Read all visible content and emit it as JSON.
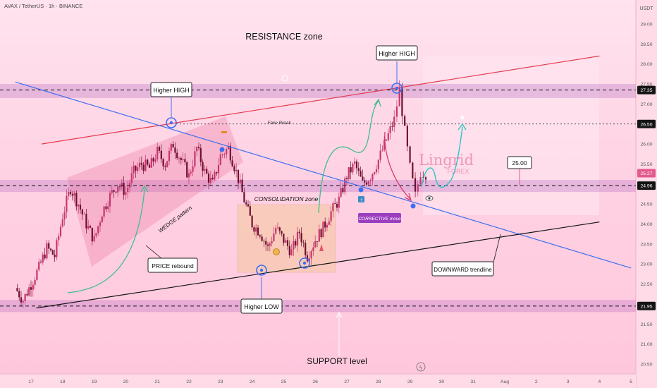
{
  "header": {
    "symbol": "AVAX / TetherUS · 1h · BINANCE"
  },
  "axis": {
    "currency": "USDT"
  },
  "annotations": {
    "resistance_zone": "RESISTANCE zone",
    "higher_high_left": "Higher HIGH",
    "higher_high_right": "Higher HIGH",
    "fake_break": "Fake Break",
    "consolidation_zone": "CONSOLIDATION zone",
    "wedge_pattern": "WEDGE pattern",
    "price_rebound": "PRICE rebound",
    "higher_low": "Higher LOW",
    "corrective_move": "CORRECTIVE move",
    "downward_trendline": "DOWNWARD trendline",
    "support_level": "SUPPORT level",
    "target_label": "25.00"
  },
  "watermark": {
    "brand": "Lingrid",
    "sub": "FOREX"
  },
  "colors": {
    "resistance_line": "#e53950",
    "downtrend_line": "#3d6ff0",
    "support_trend_line": "#111111",
    "zone_fill": "#b56bc0",
    "candle_up": "#c6366f",
    "candle_down": "#6e1030",
    "projection": "#2ec4c4",
    "arrow_green": "#3cbf8a",
    "badge_purple": "#9b3fc0"
  },
  "chart_data": {
    "type": "candlestick",
    "title": "AVAX / TetherUS · 1h · BINANCE",
    "x_ticks": [
      "17",
      "18",
      "19",
      "20",
      "21",
      "22",
      "23",
      "24",
      "25",
      "26",
      "27",
      "28",
      "29",
      "30",
      "31",
      "Aug",
      "2",
      "3",
      "4",
      "5"
    ],
    "y_ticks": [
      20.5,
      21.0,
      21.5,
      22.0,
      22.5,
      23.0,
      23.5,
      24.0,
      24.5,
      25.0,
      25.5,
      26.0,
      26.5,
      27.0,
      27.5,
      28.0,
      28.5,
      29.0
    ],
    "y_range": [
      20.2,
      29.5
    ],
    "price_labels": [
      {
        "value": 27.35,
        "text": "27.35",
        "style": "dark"
      },
      {
        "value": 26.5,
        "text": "26.50",
        "style": "dark"
      },
      {
        "value": 25.27,
        "text": "25.27",
        "style": "pink"
      },
      {
        "value": 24.96,
        "text": "24.96",
        "style": "dark"
      },
      {
        "value": 21.95,
        "text": "21.95",
        "style": "dark"
      }
    ],
    "horizontal_levels": [
      {
        "name": "resistance",
        "value": 27.35
      },
      {
        "name": "fake-break",
        "value": 26.5
      },
      {
        "name": "current-support",
        "value": 24.96
      },
      {
        "name": "support",
        "value": 21.95
      }
    ],
    "zones": [
      {
        "name": "resistance-zone",
        "low": 27.15,
        "high": 27.5
      },
      {
        "name": "mid-zone",
        "low": 24.8,
        "high": 25.1
      },
      {
        "name": "support-zone",
        "low": 21.8,
        "high": 22.1
      }
    ],
    "trendlines": [
      {
        "name": "resistance-trendline",
        "from": [
          "Jul 17 08:00",
          26.0
        ],
        "to": [
          "Aug 4 00:00",
          28.2
        ]
      },
      {
        "name": "downward-trendline",
        "from": [
          "Jul 16 12:00",
          27.55
        ],
        "to": [
          "Aug 5 00:00",
          22.9
        ]
      },
      {
        "name": "support-trendline",
        "from": [
          "Jul 17 04:00",
          21.9
        ],
        "to": [
          "Aug 4 00:00",
          24.05
        ]
      }
    ],
    "price_path": [
      [
        "Jul 16 12:00",
        22.4
      ],
      [
        "Jul 16 18:00",
        22.1
      ],
      [
        "Jul 17 00:00",
        22.5
      ],
      [
        "Jul 17 06:00",
        22.9
      ],
      [
        "Jul 17 12:00",
        23.4
      ],
      [
        "Jul 17 18:00",
        23.2
      ],
      [
        "Jul 18 00:00",
        24.2
      ],
      [
        "Jul 18 06:00",
        24.9
      ],
      [
        "Jul 18 12:00",
        24.5
      ],
      [
        "Jul 18 18:00",
        24.0
      ],
      [
        "Jul 19 00:00",
        23.6
      ],
      [
        "Jul 19 06:00",
        24.3
      ],
      [
        "Jul 19 12:00",
        24.7
      ],
      [
        "Jul 19 18:00",
        25.0
      ],
      [
        "Jul 20 00:00",
        24.8
      ],
      [
        "Jul 20 06:00",
        25.3
      ],
      [
        "Jul 20 12:00",
        25.5
      ],
      [
        "Jul 20 18:00",
        25.4
      ],
      [
        "Jul 21 00:00",
        25.8
      ],
      [
        "Jul 21 06:00",
        25.5
      ],
      [
        "Jul 21 12:00",
        26.0
      ],
      [
        "Jul 21 18:00",
        25.6
      ],
      [
        "Jul 22 00:00",
        25.2
      ],
      [
        "Jul 22 06:00",
        25.9
      ],
      [
        "Jul 22 12:00",
        25.3
      ],
      [
        "Jul 22 18:00",
        25.0
      ],
      [
        "Jul 23 00:00",
        25.7
      ],
      [
        "Jul 23 06:00",
        25.9
      ],
      [
        "Jul 23 12:00",
        25.3
      ],
      [
        "Jul 23 18:00",
        24.6
      ],
      [
        "Jul 24 00:00",
        24.0
      ],
      [
        "Jul 24 06:00",
        23.8
      ],
      [
        "Jul 24 12:00",
        23.4
      ],
      [
        "Jul 24 18:00",
        23.9
      ],
      [
        "Jul 25 00:00",
        23.6
      ],
      [
        "Jul 25 06:00",
        23.3
      ],
      [
        "Jul 25 12:00",
        23.8
      ],
      [
        "Jul 25 18:00",
        23.2
      ],
      [
        "Jul 26 00:00",
        23.6
      ],
      [
        "Jul 26 06:00",
        23.9
      ],
      [
        "Jul 26 12:00",
        24.3
      ],
      [
        "Jul 26 18:00",
        24.6
      ],
      [
        "Jul 27 00:00",
        25.2
      ],
      [
        "Jul 27 06:00",
        25.5
      ],
      [
        "Jul 27 12:00",
        25.0
      ],
      [
        "Jul 27 18:00",
        25.2
      ],
      [
        "Jul 28 00:00",
        25.6
      ],
      [
        "Jul 28 06:00",
        26.1
      ],
      [
        "Jul 28 12:00",
        26.6
      ],
      [
        "Jul 28 16:00",
        27.35
      ],
      [
        "Jul 28 20:00",
        26.3
      ],
      [
        "Jul 29 00:00",
        25.4
      ],
      [
        "Jul 29 04:00",
        24.7
      ],
      [
        "Jul 29 08:00",
        25.3
      ],
      [
        "Jul 29 12:00",
        25.27
      ]
    ]
  }
}
